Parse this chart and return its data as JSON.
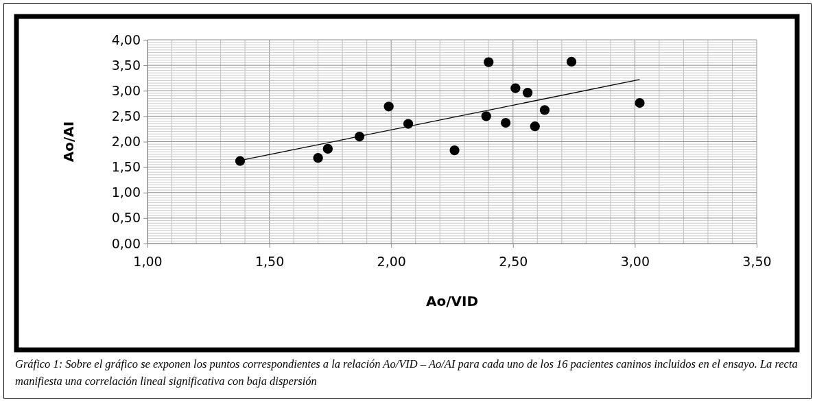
{
  "chart_data": {
    "type": "scatter",
    "xlabel": "Ao/VID",
    "ylabel": "Ao/AI",
    "annotations": [
      "Gráfico 1: Sobre el gráfico se exponen los puntos correspondientes a la relación Ao/VID – Ao/AI para cada uno de los 16 pacientes caninos incluidos en el ensayo. La recta manifiesta una correlación lineal significativa con baja dispersión"
    ],
    "x": [
      1.38,
      1.7,
      1.74,
      1.87,
      1.99,
      2.07,
      2.26,
      2.4,
      2.39,
      2.47,
      2.51,
      2.56,
      2.59,
      2.63,
      2.74,
      3.02
    ],
    "series": [
      {
        "color": "#000000",
        "marker": "circle",
        "values": [
          1.62,
          1.68,
          1.86,
          2.1,
          2.69,
          2.35,
          1.83,
          3.56,
          2.5,
          2.37,
          3.05,
          2.96,
          2.3,
          2.62,
          3.57,
          2.76
        ]
      },
      {
        "type": "line",
        "color": "#000000",
        "x": [
          1.38,
          3.02
        ],
        "values": [
          1.63,
          3.22
        ]
      }
    ],
    "xlim": [
      1,
      3.5
    ],
    "xticks": [
      {
        "value": 1,
        "label": "1,00"
      },
      {
        "value": 1.5,
        "label": "1,50"
      },
      {
        "value": 2,
        "label": "2,00"
      },
      {
        "value": 2.5,
        "label": "2,50"
      },
      {
        "value": 3,
        "label": "3,00"
      },
      {
        "value": 3.5,
        "label": "3,50"
      }
    ],
    "ylim": [
      0,
      4
    ],
    "yticks": [
      {
        "value": 0,
        "label": "0,00"
      },
      {
        "value": 0.5,
        "label": "0,50"
      },
      {
        "value": 1,
        "label": "1,00"
      },
      {
        "value": 1.5,
        "label": "1,50"
      },
      {
        "value": 2,
        "label": "2,00"
      },
      {
        "value": 2.5,
        "label": "2,50"
      },
      {
        "value": 3,
        "label": "3,00"
      },
      {
        "value": 3.5,
        "label": "3,50"
      },
      {
        "value": 4,
        "label": "4,00"
      }
    ],
    "grid": true
  }
}
